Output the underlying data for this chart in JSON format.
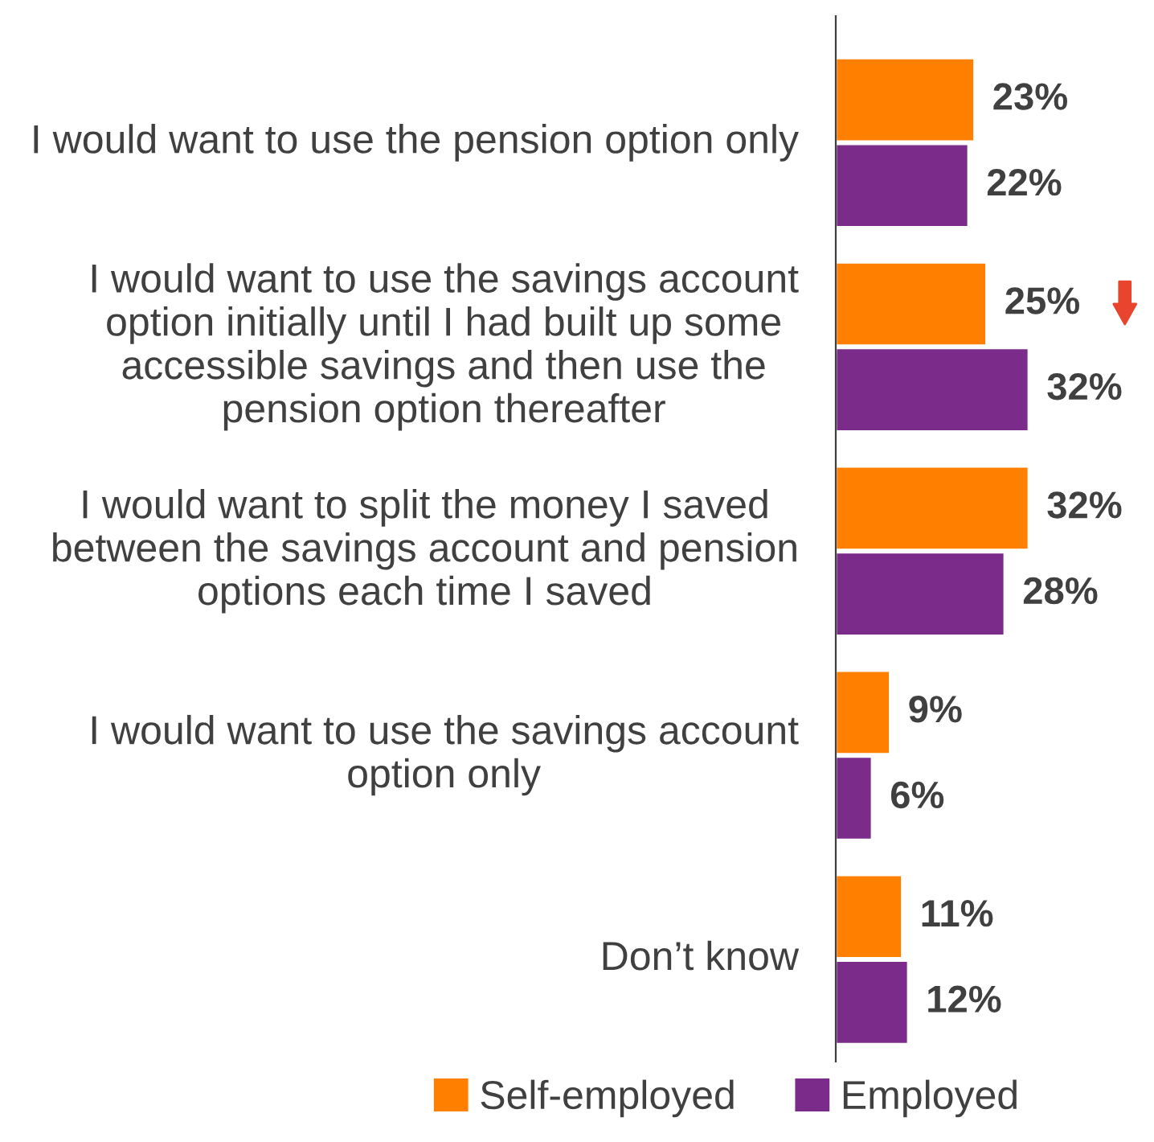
{
  "chart_data": {
    "type": "bar",
    "orientation": "horizontal",
    "categories": [
      "I would want to use the pension option only",
      "I would want to use the savings account option initially until I had built up some accessible savings and then use the pension option thereafter",
      "I would want to split the money I saved between the savings account and pension options each time I saved",
      "I would want to use the savings account option only",
      "Don’t know"
    ],
    "series": [
      {
        "name": "Self-employed",
        "color": "#ff8000",
        "values": [
          23,
          25,
          32,
          9,
          11
        ],
        "value_labels": [
          "23%",
          "25%",
          "32%",
          "9%",
          "11%"
        ]
      },
      {
        "name": "Employed",
        "color": "#7b2c8a",
        "values": [
          22,
          32,
          28,
          6,
          12
        ],
        "value_labels": [
          "22%",
          "32%",
          "28%",
          "6%",
          "12%"
        ]
      }
    ],
    "tick_labels": "y",
    "legend": "bottom"
  }
}
